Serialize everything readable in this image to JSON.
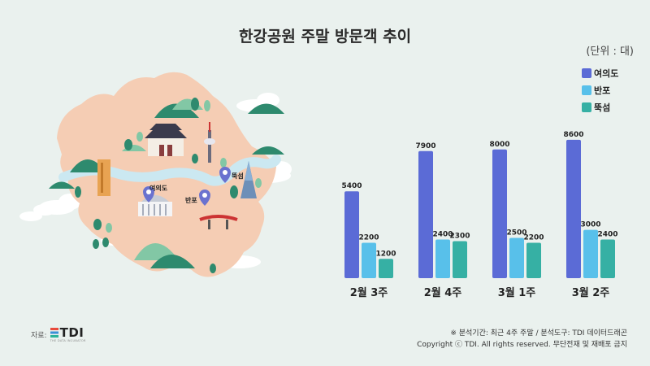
{
  "title": "한강공원 주말 방문객 추이",
  "unit": "(단위 : 대)",
  "map_labels": {
    "yeouido": "여의도",
    "banpo": "반포",
    "ttukseom": "뚝섬"
  },
  "source": {
    "label": "자료:",
    "logo": "TDI",
    "tagline": "THE DATA INCUBATOR"
  },
  "footnote": {
    "line1": "※ 분석기간: 최근 4주 주말 / 분석도구: TDI 데이터드래곤",
    "line2": "Copyright ⓒ TDI. All rights reserved. 무단전재 및 재배포 금지"
  },
  "colors": {
    "yeouido": "#5b6bd6",
    "banpo": "#58c0ea",
    "ttukseom": "#36b0a4",
    "background": "#eaf1ee"
  },
  "chart_data": {
    "type": "bar",
    "title": "한강공원 주말 방문객 추이",
    "categories": [
      "2월 3주",
      "2월 4주",
      "3월 1주",
      "3월 2주"
    ],
    "series": [
      {
        "name": "여의도",
        "values": [
          5400,
          7900,
          8000,
          8600
        ]
      },
      {
        "name": "반포",
        "values": [
          2200,
          2400,
          2500,
          3000
        ]
      },
      {
        "name": "뚝섬",
        "values": [
          1200,
          2300,
          2200,
          2400
        ]
      }
    ],
    "ylim": [
      0,
      9000
    ],
    "grid": false,
    "legend": "top-right"
  }
}
